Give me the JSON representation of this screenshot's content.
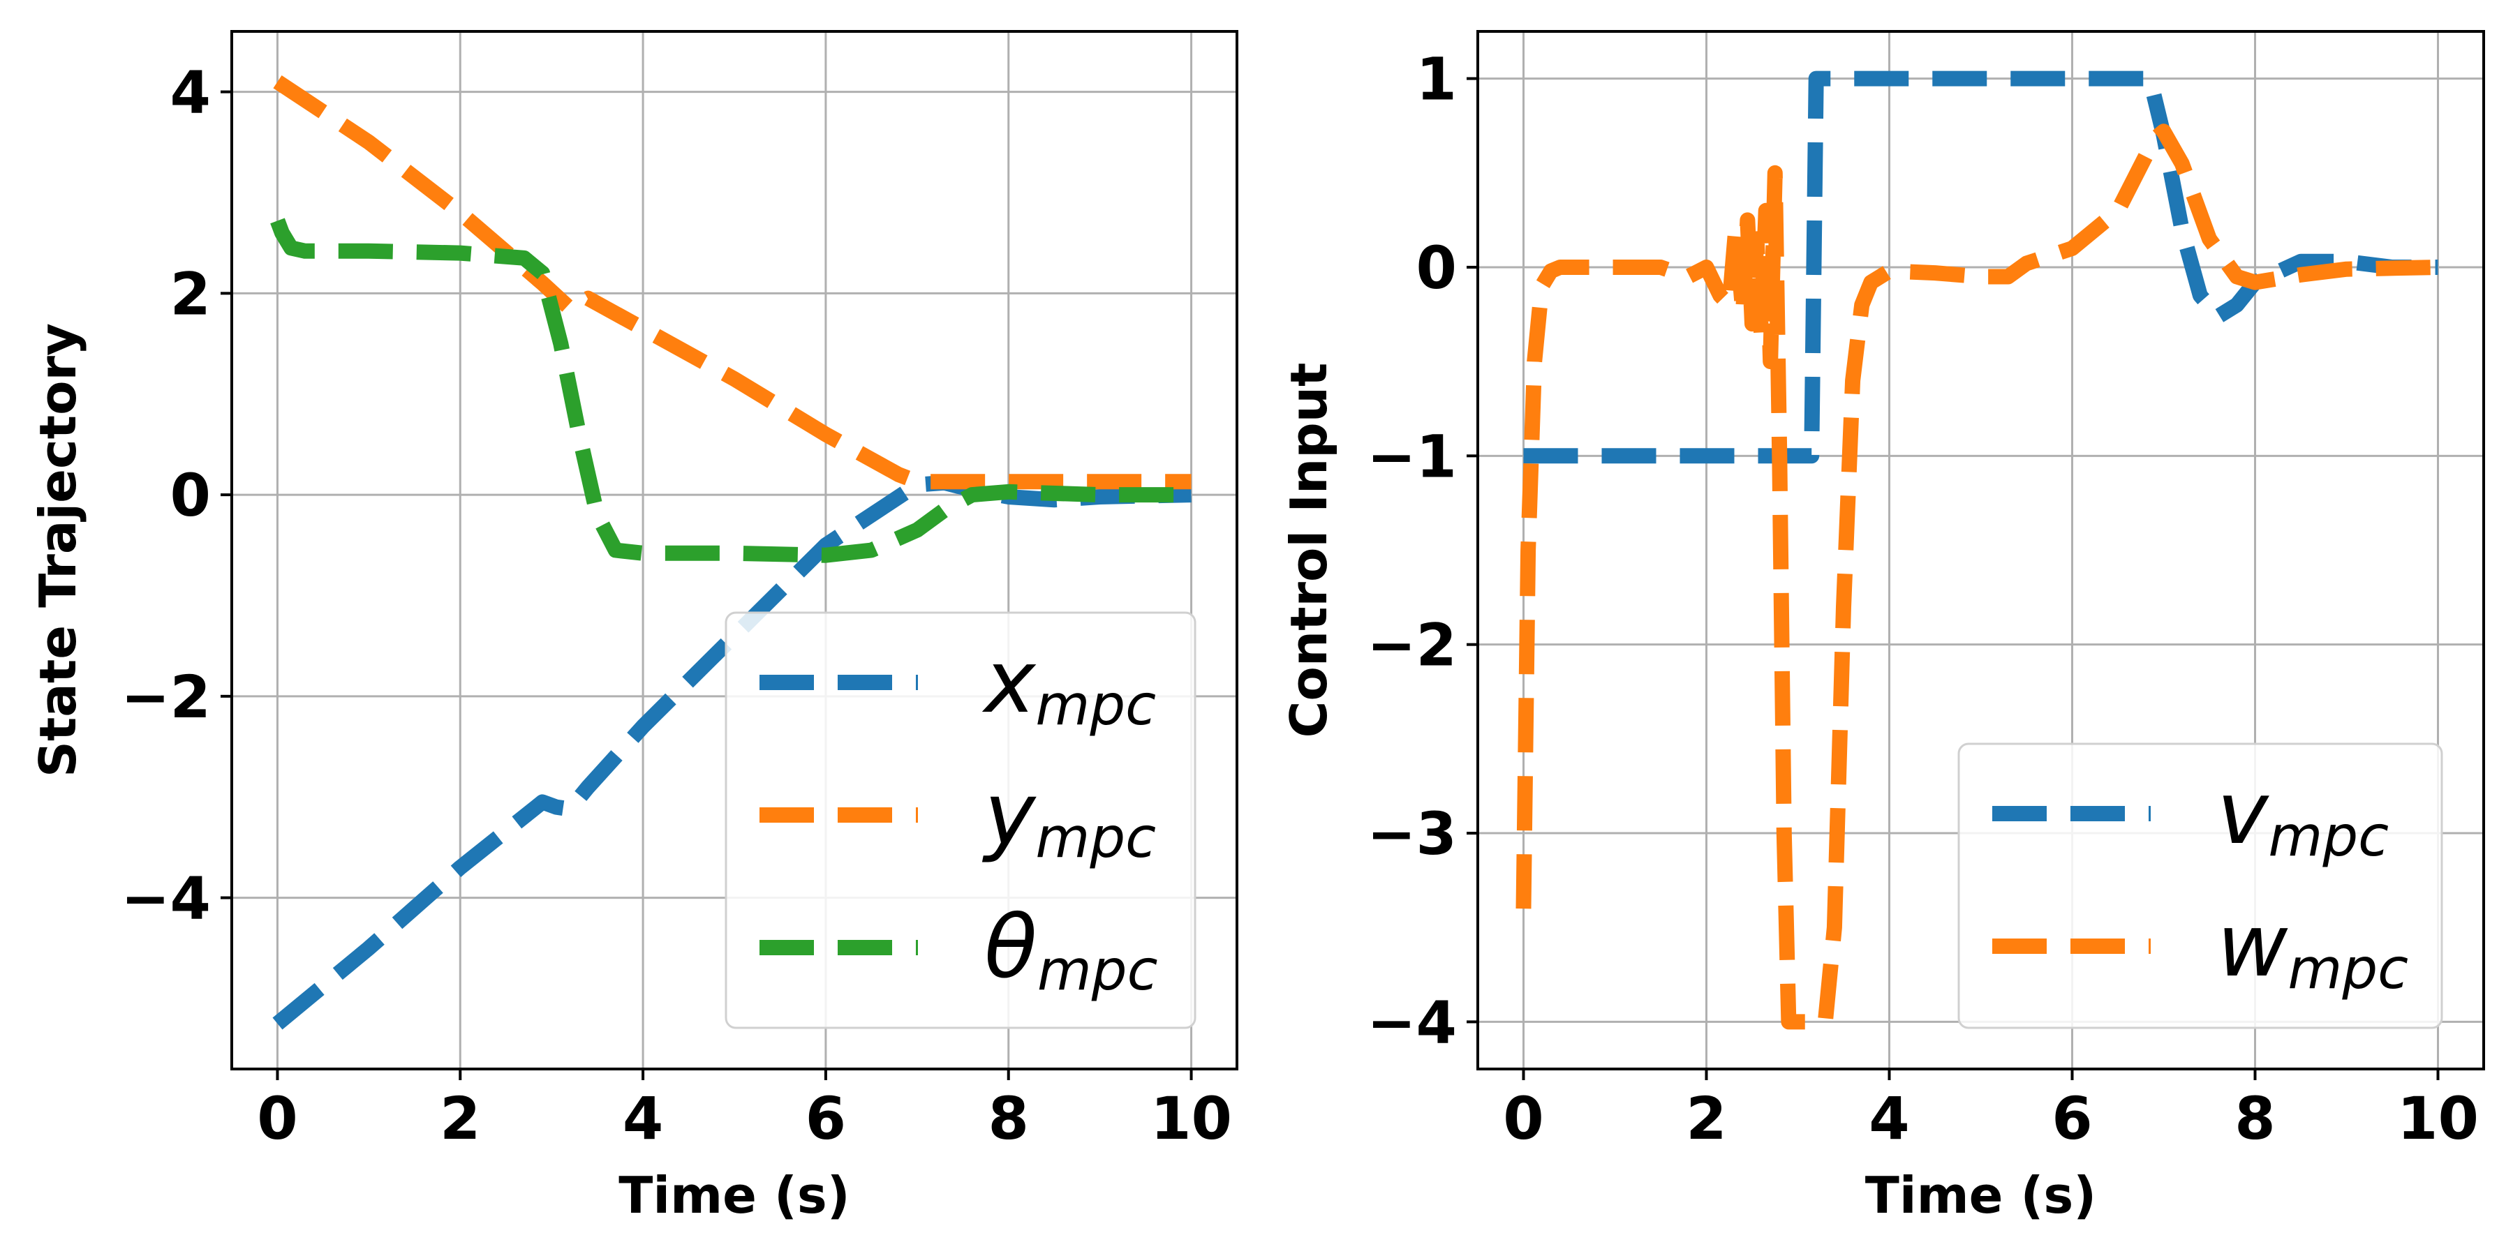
{
  "chart_data": [
    {
      "type": "line",
      "xlabel": "Time (s)",
      "ylabel": "State Trajectory",
      "xlim": [
        -0.5,
        10.5
      ],
      "ylim": [
        -5.7,
        4.6
      ],
      "xticks": [
        0,
        2,
        4,
        6,
        8,
        10
      ],
      "yticks": [
        -4,
        -2,
        0,
        2,
        4
      ],
      "grid": true,
      "legend_position": "lower right",
      "series": [
        {
          "name": "x_mpc",
          "legend_main": "x",
          "legend_sub": "mpc",
          "color": "#1f77b4",
          "x": [
            0,
            1,
            2,
            2.9,
            3.05,
            3.2,
            3.4,
            4,
            5,
            6,
            7.0,
            7.3,
            7.6,
            8,
            8.5,
            9,
            10
          ],
          "y": [
            -5.25,
            -4.5,
            -3.7,
            -3.05,
            -3.1,
            -3.12,
            -2.9,
            -2.3,
            -1.4,
            -0.5,
            0.1,
            0.12,
            0.05,
            -0.02,
            -0.05,
            -0.02,
            0.0
          ]
        },
        {
          "name": "y_mpc",
          "legend_main": "y",
          "legend_sub": "mpc",
          "color": "#ff7f0e",
          "x": [
            0,
            1,
            2,
            2.9,
            3.2,
            3.4,
            4,
            5,
            6,
            6.8,
            7.0,
            7.5,
            8,
            9,
            10
          ],
          "y": [
            4.1,
            3.5,
            2.8,
            2.1,
            1.85,
            1.95,
            1.65,
            1.15,
            0.6,
            0.2,
            0.13,
            0.13,
            0.13,
            0.13,
            0.13
          ]
        },
        {
          "name": "theta_mpc",
          "legend_main": "θ",
          "legend_sub": "mpc",
          "color": "#2ca02c",
          "x": [
            0,
            0.05,
            0.15,
            0.3,
            1,
            2,
            2.7,
            2.9,
            3.1,
            3.3,
            3.5,
            3.7,
            4,
            5,
            6,
            6.5,
            7,
            7.3,
            7.6,
            8,
            9,
            10
          ],
          "y": [
            2.72,
            2.6,
            2.45,
            2.42,
            2.42,
            2.4,
            2.35,
            2.2,
            1.5,
            0.6,
            -0.2,
            -0.55,
            -0.58,
            -0.58,
            -0.6,
            -0.55,
            -0.35,
            -0.15,
            0.0,
            0.03,
            0.0,
            0.0
          ]
        }
      ]
    },
    {
      "type": "line",
      "xlabel": "Time (s)",
      "ylabel": "Control Input",
      "xlim": [
        -0.5,
        10.5
      ],
      "ylim": [
        -4.25,
        1.25
      ],
      "xticks": [
        0,
        2,
        4,
        6,
        8,
        10
      ],
      "yticks": [
        -4,
        -3,
        -2,
        -1,
        0,
        1
      ],
      "grid": true,
      "legend_position": "lower right",
      "series": [
        {
          "name": "v_mpc",
          "legend_main": "v",
          "legend_sub": "mpc",
          "color": "#1f77b4",
          "x": [
            0,
            0.01,
            0.05,
            1,
            2,
            3.0,
            3.15,
            3.2,
            4,
            5,
            6,
            6.85,
            7.0,
            7.2,
            7.4,
            7.6,
            7.8,
            8,
            8.5,
            9,
            9.5,
            10
          ],
          "y": [
            -1.0,
            -1.0,
            -1.0,
            -1.0,
            -1.0,
            -1.0,
            -1.0,
            1.0,
            1.0,
            1.0,
            1.0,
            1.0,
            0.7,
            0.2,
            -0.15,
            -0.26,
            -0.2,
            -0.08,
            0.03,
            0.03,
            0.0,
            0.0
          ]
        },
        {
          "name": "w_mpc",
          "legend_main": "w",
          "legend_sub": "mpc",
          "color": "#ff7f0e",
          "x": [
            0,
            0.05,
            0.12,
            0.2,
            0.3,
            0.4,
            1,
            1.5,
            1.8,
            2.0,
            2.15,
            2.25,
            2.32,
            2.4,
            2.45,
            2.5,
            2.55,
            2.6,
            2.65,
            2.7,
            2.75,
            2.8,
            2.85,
            2.9,
            3.0,
            3.1,
            3.2,
            3.3,
            3.4,
            3.5,
            3.6,
            3.7,
            3.8,
            4.0,
            4.5,
            5,
            5.3,
            5.5,
            6,
            6.5,
            6.9,
            7.0,
            7.2,
            7.5,
            7.8,
            8,
            8.5,
            9,
            10
          ],
          "y": [
            -3.4,
            -1.5,
            -0.5,
            -0.1,
            -0.02,
            0.0,
            0.0,
            0.0,
            -0.05,
            0.0,
            -0.15,
            -0.2,
            0.2,
            -0.25,
            0.25,
            -0.3,
            0.15,
            -0.35,
            0.3,
            -0.5,
            0.5,
            -1.0,
            -3.0,
            -4.0,
            -4.0,
            -4.0,
            -4.0,
            -4.0,
            -3.5,
            -1.8,
            -0.6,
            -0.2,
            -0.08,
            -0.02,
            -0.03,
            -0.05,
            -0.05,
            0.02,
            0.1,
            0.3,
            0.68,
            0.72,
            0.55,
            0.15,
            -0.05,
            -0.08,
            -0.04,
            -0.01,
            0.0
          ]
        }
      ]
    }
  ]
}
